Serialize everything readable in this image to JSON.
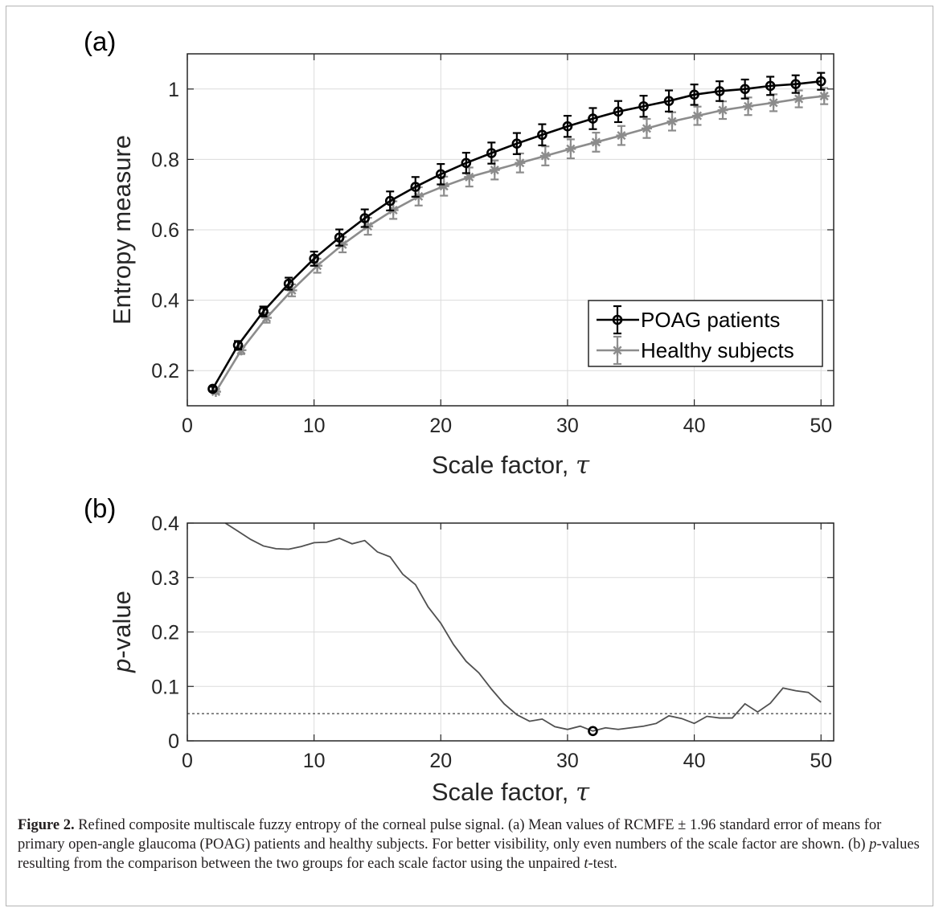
{
  "chart_data": [
    {
      "type": "line",
      "panel_label": "(a)",
      "xlabel": "Scale factor, τ",
      "ylabel": "Entropy measure",
      "xlim": [
        0,
        51
      ],
      "ylim": [
        0.1,
        1.1
      ],
      "xticks": [
        0,
        10,
        20,
        30,
        40,
        50
      ],
      "yticks": [
        0.2,
        0.4,
        0.6,
        0.8,
        1
      ],
      "grid": true,
      "legend_position": "bottom-right",
      "x": [
        2,
        4,
        6,
        8,
        10,
        12,
        14,
        16,
        18,
        20,
        22,
        24,
        26,
        28,
        30,
        32,
        34,
        36,
        38,
        40,
        42,
        44,
        46,
        48,
        50
      ],
      "series": [
        {
          "name": "POAG patients",
          "marker": "circle",
          "values": [
            0.148,
            0.272,
            0.368,
            0.447,
            0.518,
            0.578,
            0.633,
            0.682,
            0.722,
            0.758,
            0.79,
            0.818,
            0.845,
            0.87,
            0.894,
            0.916,
            0.936,
            0.951,
            0.966,
            0.984,
            0.994,
            1.0,
            1.009,
            1.014,
            1.022
          ],
          "errors": [
            0.006,
            0.012,
            0.014,
            0.017,
            0.02,
            0.023,
            0.025,
            0.027,
            0.028,
            0.029,
            0.029,
            0.03,
            0.03,
            0.03,
            0.03,
            0.03,
            0.03,
            0.03,
            0.03,
            0.029,
            0.028,
            0.027,
            0.026,
            0.025,
            0.024
          ]
        },
        {
          "name": "Healthy subjects",
          "marker": "asterisk",
          "values": [
            0.14,
            0.258,
            0.35,
            0.428,
            0.498,
            0.558,
            0.61,
            0.656,
            0.695,
            0.724,
            0.75,
            0.77,
            0.79,
            0.81,
            0.83,
            0.849,
            0.868,
            0.888,
            0.908,
            0.924,
            0.94,
            0.951,
            0.961,
            0.972,
            0.98
          ],
          "errors": [
            0.006,
            0.011,
            0.014,
            0.017,
            0.02,
            0.022,
            0.024,
            0.025,
            0.026,
            0.027,
            0.027,
            0.027,
            0.027,
            0.027,
            0.027,
            0.027,
            0.027,
            0.027,
            0.026,
            0.026,
            0.025,
            0.025,
            0.024,
            0.024,
            0.023
          ]
        }
      ],
      "colors": {
        "POAG patients": "#000000",
        "Healthy subjects": "#8c8c8c"
      }
    },
    {
      "type": "line",
      "panel_label": "(b)",
      "xlabel": "Scale factor, τ",
      "ylabel_italic": "p",
      "ylabel_rest": "-value",
      "xlim": [
        0,
        51
      ],
      "ylim": [
        0,
        0.4
      ],
      "xticks": [
        0,
        10,
        20,
        30,
        40,
        50
      ],
      "yticks": [
        0,
        0.1,
        0.2,
        0.3,
        0.4
      ],
      "grid": true,
      "threshold": 0.05,
      "minimum_point": {
        "x": 32,
        "y": 0.018
      },
      "x": [
        3,
        4,
        5,
        6,
        7,
        8,
        9,
        10,
        11,
        12,
        13,
        14,
        15,
        16,
        17,
        18,
        19,
        20,
        21,
        22,
        23,
        24,
        25,
        26,
        27,
        28,
        29,
        30,
        31,
        32,
        33,
        34,
        35,
        36,
        37,
        38,
        39,
        40,
        41,
        42,
        43,
        44,
        45,
        46,
        47,
        48,
        49,
        50
      ],
      "values": [
        0.4,
        0.385,
        0.37,
        0.358,
        0.353,
        0.352,
        0.357,
        0.364,
        0.365,
        0.372,
        0.362,
        0.368,
        0.347,
        0.338,
        0.306,
        0.287,
        0.246,
        0.216,
        0.177,
        0.146,
        0.125,
        0.095,
        0.068,
        0.048,
        0.036,
        0.04,
        0.026,
        0.021,
        0.027,
        0.018,
        0.024,
        0.021,
        0.024,
        0.027,
        0.032,
        0.046,
        0.041,
        0.032,
        0.045,
        0.042,
        0.042,
        0.068,
        0.053,
        0.069,
        0.097,
        0.092,
        0.089,
        0.071
      ],
      "color": "#505050"
    }
  ],
  "caption": {
    "figure_label": "Figure 2.",
    "text": " Refined composite multiscale fuzzy entropy of the corneal pulse signal. (a) Mean values of RCMFE ± 1.96 standard error of means for primary open-angle glaucoma (POAG) patients and healthy subjects. For better visibility, only even numbers of the scale factor are shown. (b) ",
    "p_italic": "p",
    "text2": "-values resulting from the comparison between the two groups for each scale factor using the unpaired ",
    "t_italic": "t",
    "text3": "-test."
  }
}
